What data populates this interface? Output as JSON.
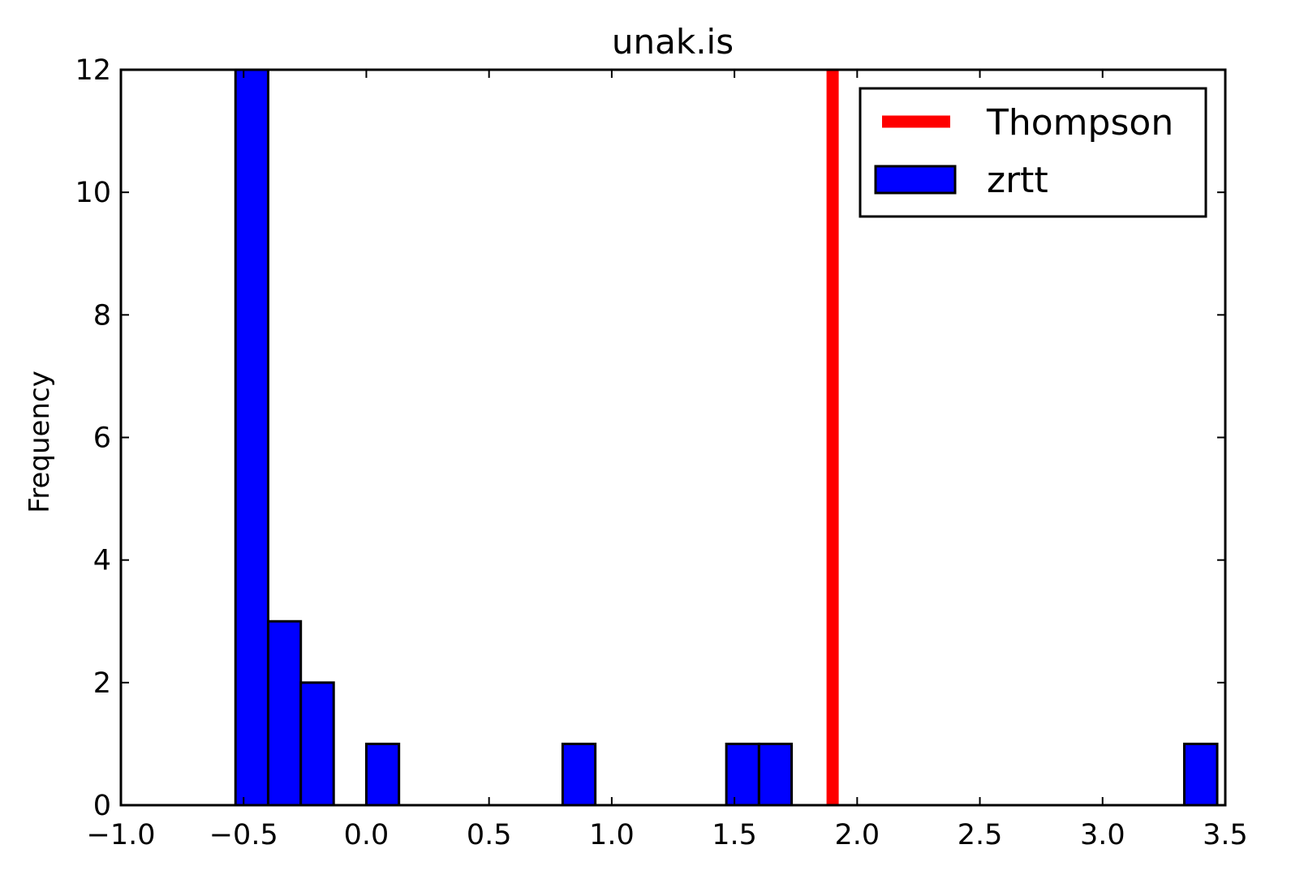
{
  "chart_data": {
    "type": "bar",
    "title": "unak.is",
    "xlabel": "",
    "ylabel": "Frequency",
    "xlim": [
      -1.0,
      3.5
    ],
    "ylim": [
      0,
      12
    ],
    "xticks": [
      -1.0,
      -0.5,
      0.0,
      0.5,
      1.0,
      1.5,
      2.0,
      2.5,
      3.0,
      3.5
    ],
    "xtick_labels": [
      "−1.0",
      "−0.5",
      "0.0",
      "0.5",
      "1.0",
      "1.5",
      "2.0",
      "2.5",
      "3.0",
      "3.5"
    ],
    "yticks": [
      0,
      2,
      4,
      6,
      8,
      10,
      12
    ],
    "ytick_labels": [
      "0",
      "2",
      "4",
      "6",
      "8",
      "10",
      "12"
    ],
    "grid": false,
    "legend_position": "top-right",
    "bin_width": 0.1333,
    "series": [
      {
        "name": "zrtt",
        "type": "histogram",
        "color": "#0000ff",
        "bins": [
          {
            "x0": -0.533,
            "x1": -0.4,
            "count": 12
          },
          {
            "x0": -0.4,
            "x1": -0.267,
            "count": 3
          },
          {
            "x0": -0.267,
            "x1": -0.133,
            "count": 2
          },
          {
            "x0": -0.133,
            "x1": 0.0,
            "count": 0
          },
          {
            "x0": 0.0,
            "x1": 0.133,
            "count": 1
          },
          {
            "x0": 0.133,
            "x1": 0.267,
            "count": 0
          },
          {
            "x0": 0.267,
            "x1": 0.4,
            "count": 0
          },
          {
            "x0": 0.4,
            "x1": 0.533,
            "count": 0
          },
          {
            "x0": 0.533,
            "x1": 0.667,
            "count": 0
          },
          {
            "x0": 0.667,
            "x1": 0.8,
            "count": 0
          },
          {
            "x0": 0.8,
            "x1": 0.933,
            "count": 1
          },
          {
            "x0": 0.933,
            "x1": 1.067,
            "count": 0
          },
          {
            "x0": 1.067,
            "x1": 1.2,
            "count": 0
          },
          {
            "x0": 1.2,
            "x1": 1.333,
            "count": 0
          },
          {
            "x0": 1.333,
            "x1": 1.467,
            "count": 0
          },
          {
            "x0": 1.467,
            "x1": 1.6,
            "count": 1
          },
          {
            "x0": 1.6,
            "x1": 1.733,
            "count": 1
          },
          {
            "x0": 1.733,
            "x1": 1.867,
            "count": 0
          },
          {
            "x0": 1.867,
            "x1": 2.0,
            "count": 0
          },
          {
            "x0": 2.0,
            "x1": 2.133,
            "count": 0
          },
          {
            "x0": 2.133,
            "x1": 2.267,
            "count": 0
          },
          {
            "x0": 2.267,
            "x1": 2.4,
            "count": 0
          },
          {
            "x0": 2.4,
            "x1": 2.533,
            "count": 0
          },
          {
            "x0": 2.533,
            "x1": 2.667,
            "count": 0
          },
          {
            "x0": 2.667,
            "x1": 2.8,
            "count": 0
          },
          {
            "x0": 2.8,
            "x1": 2.933,
            "count": 0
          },
          {
            "x0": 2.933,
            "x1": 3.067,
            "count": 0
          },
          {
            "x0": 3.067,
            "x1": 3.2,
            "count": 0
          },
          {
            "x0": 3.2,
            "x1": 3.333,
            "count": 0
          },
          {
            "x0": 3.333,
            "x1": 3.467,
            "count": 1
          }
        ]
      },
      {
        "name": "Thompson",
        "type": "vline",
        "color": "#ff0000",
        "x": 1.9
      }
    ]
  }
}
